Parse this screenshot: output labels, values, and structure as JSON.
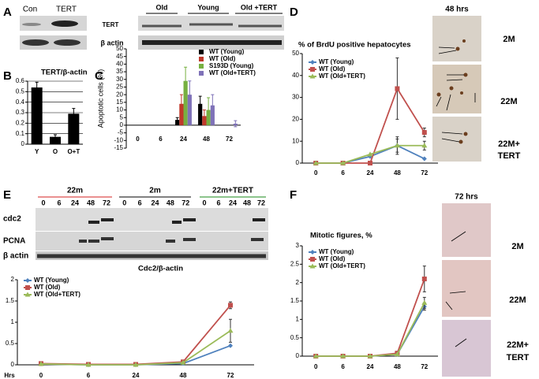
{
  "figure": {
    "panel_labels": [
      "A",
      "B",
      "C",
      "D",
      "E",
      "F"
    ],
    "blot_a": {
      "left_lanes": [
        "Con",
        "TERT"
      ],
      "rows": [
        "TERT",
        "β actin"
      ],
      "right_groups": [
        "Old",
        "Young",
        "Old +TERT"
      ]
    },
    "micrographs_d": {
      "time": "48 hrs",
      "labels": [
        "2M",
        "22M",
        "22M+",
        "TERT"
      ]
    },
    "blot_e": {
      "groups": [
        "22m",
        "2m",
        "22m+TERT"
      ],
      "lanes": [
        "0",
        "6",
        "24",
        "48",
        "72"
      ],
      "rows": [
        "cdc2",
        "PCNA",
        "β actin"
      ]
    },
    "micrographs_f": {
      "time": "72 hrs",
      "labels": [
        "2M",
        "22M",
        "22M+",
        "TERT"
      ]
    }
  },
  "chart_data": [
    {
      "type": "bar",
      "title": "TERT/β-actin",
      "categories": [
        "Y",
        "O",
        "O+T"
      ],
      "values": [
        0.54,
        0.07,
        0.29
      ],
      "errors": [
        0.05,
        0.02,
        0.05
      ],
      "color": "#000000",
      "ylim": [
        0,
        0.6
      ],
      "yticks": [
        0,
        0.1,
        0.2,
        0.3,
        0.4,
        0.5,
        0.6
      ],
      "grid": true
    },
    {
      "type": "grouped_bar",
      "y_label": "Apoptotic cells (%)",
      "categories": [
        "0",
        "6",
        "24",
        "48",
        "72"
      ],
      "series": [
        {
          "name": "WT (Young)",
          "color": "#000000",
          "values": [
            0,
            0,
            3.5,
            14,
            0
          ],
          "errors": [
            null,
            null,
            1.5,
            5,
            null
          ]
        },
        {
          "name": "WT (Old)",
          "color": "#c0392b",
          "values": [
            0,
            0,
            14,
            6,
            0
          ],
          "errors": [
            null,
            null,
            6,
            4,
            null
          ]
        },
        {
          "name": "S193D (Young)",
          "color": "#77b041",
          "values": [
            0,
            0,
            29,
            10,
            0
          ],
          "errors": [
            null,
            null,
            9,
            8,
            null
          ]
        },
        {
          "name": "WT (Old+TERT)",
          "color": "#7f72b8",
          "values": [
            0,
            0,
            20,
            13,
            1
          ],
          "errors": [
            null,
            null,
            9,
            7,
            2
          ]
        }
      ],
      "ylim": [
        -15,
        50
      ],
      "yticks": [
        -15,
        -10,
        -5,
        0,
        5,
        10,
        15,
        20,
        25,
        30,
        35,
        40,
        45,
        50
      ],
      "grid": false,
      "legend": "upper right"
    },
    {
      "type": "line",
      "title": "% of BrdU positive hepatocytes",
      "categories": [
        "0",
        "6",
        "24",
        "48",
        "72"
      ],
      "series": [
        {
          "name": "WT (Young)",
          "color": "#4f81bd",
          "values": [
            0,
            0,
            3,
            8,
            2
          ],
          "errors": [
            null,
            null,
            null,
            4,
            null
          ]
        },
        {
          "name": "WT (Old)",
          "color": "#c0504d",
          "values": [
            0,
            0,
            0,
            34,
            14
          ],
          "errors": [
            null,
            null,
            null,
            14,
            2
          ]
        },
        {
          "name": "WT (Old+TERT)",
          "color": "#9bbb59",
          "values": [
            0,
            0,
            4,
            8,
            8
          ],
          "errors": [
            null,
            null,
            null,
            3,
            2
          ]
        }
      ],
      "ylim": [
        0,
        50
      ],
      "yticks": [
        0,
        10,
        20,
        30,
        40,
        50
      ],
      "grid": false,
      "legend": "upper left"
    },
    {
      "type": "line",
      "title": "Cdc2/β-actin",
      "x_label": "Hrs",
      "categories": [
        "0",
        "6",
        "24",
        "48",
        "72"
      ],
      "series": [
        {
          "name": "WT (Young)",
          "color": "#4f81bd",
          "values": [
            0.02,
            0,
            0,
            0.03,
            0.45
          ],
          "errors": [
            null,
            null,
            null,
            null,
            null
          ]
        },
        {
          "name": "WT (Old)",
          "color": "#c0504d",
          "values": [
            0.03,
            0.01,
            0.01,
            0.07,
            1.4
          ],
          "errors": [
            null,
            null,
            null,
            null,
            0.08
          ]
        },
        {
          "name": "WT (Old+TERT)",
          "color": "#9bbb59",
          "values": [
            0.02,
            0,
            0,
            0.05,
            0.8
          ],
          "errors": [
            null,
            null,
            null,
            null,
            0.27
          ]
        }
      ],
      "ylim": [
        0,
        2
      ],
      "yticks": [
        0,
        0.5,
        1,
        1.5,
        2
      ],
      "grid": false,
      "legend": "upper left"
    },
    {
      "type": "line",
      "title": "Mitotic figures, %",
      "categories": [
        "0",
        "6",
        "24",
        "48",
        "72"
      ],
      "series": [
        {
          "name": "WT (Young)",
          "color": "#4f81bd",
          "values": [
            0,
            0,
            0,
            0.05,
            1.35
          ],
          "errors": [
            null,
            null,
            null,
            null,
            0.1
          ]
        },
        {
          "name": "WT (Old)",
          "color": "#c0504d",
          "values": [
            0,
            0,
            0,
            0.08,
            2.1
          ],
          "errors": [
            null,
            null,
            null,
            0.05,
            0.35
          ]
        },
        {
          "name": "WT (Old+TERT)",
          "color": "#9bbb59",
          "values": [
            0,
            0,
            0,
            0.05,
            1.45
          ],
          "errors": [
            null,
            null,
            null,
            null,
            0.15
          ]
        }
      ],
      "ylim": [
        0,
        3
      ],
      "yticks": [
        0,
        0.5,
        1,
        1.5,
        2,
        2.5,
        3
      ],
      "grid": false,
      "legend": "upper left"
    }
  ]
}
